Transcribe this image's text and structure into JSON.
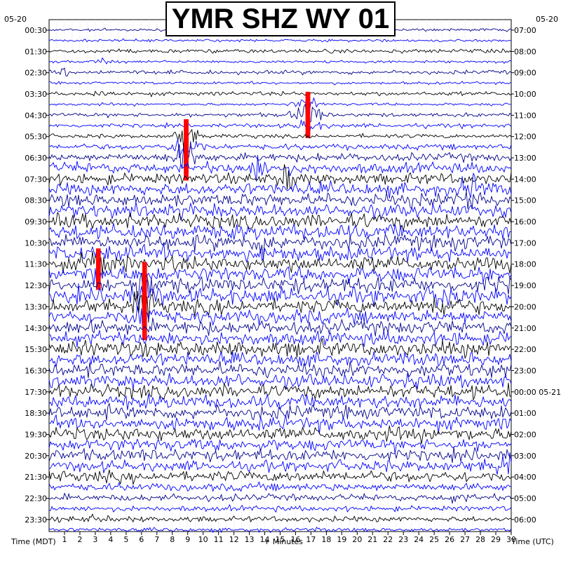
{
  "title": "YMR SHZ WY 01",
  "date_left": "05-20",
  "date_right": "05-20",
  "xlabel": "+ Minutes",
  "left_axis_label": "Time (MDT)",
  "right_axis_label": "Time (UTC)",
  "colors": {
    "trace_sequence": [
      "#00008b",
      "#0000ff",
      "#000000",
      "#0000ff"
    ],
    "clip": "#ff0000",
    "grid": "#c8c8c8"
  },
  "chart_data": {
    "type": "line",
    "description_of_series": "helicorder: 48 rows of 30-minute seismogram traces",
    "rows": 48,
    "minutes_per_row": 30,
    "xlim": [
      0,
      30
    ],
    "x_ticks": [
      1,
      2,
      3,
      4,
      5,
      6,
      7,
      8,
      9,
      10,
      11,
      12,
      13,
      14,
      15,
      16,
      17,
      18,
      19,
      20,
      21,
      22,
      23,
      24,
      25,
      26,
      27,
      28,
      29,
      30
    ],
    "left_tick_labels": [
      "00:30",
      "01:30",
      "02:30",
      "03:30",
      "04:30",
      "05:30",
      "06:30",
      "07:30",
      "08:30",
      "09:30",
      "10:30",
      "11:30",
      "12:30",
      "13:30",
      "14:30",
      "15:30",
      "16:30",
      "17:30",
      "18:30",
      "19:30",
      "20:30",
      "21:30",
      "22:30",
      "23:30"
    ],
    "right_tick_labels": [
      "07:00",
      "08:00",
      "09:00",
      "10:00",
      "11:00",
      "12:00",
      "13:00",
      "14:00",
      "15:00",
      "16:00",
      "17:00",
      "18:00",
      "19:00",
      "20:00",
      "21:00",
      "22:00",
      "23:00",
      "00:00 05-21",
      "01:00",
      "02:00",
      "03:00",
      "04:00",
      "05:00",
      "06:00"
    ],
    "noise_amplitude_by_row": [
      2,
      2,
      3,
      2,
      3,
      2,
      3,
      2,
      3,
      3,
      3,
      4,
      6,
      8,
      8,
      9,
      10,
      10,
      11,
      11,
      11,
      11,
      11,
      11,
      11,
      11,
      10,
      10,
      10,
      10,
      11,
      10,
      10,
      10,
      10,
      10,
      10,
      10,
      10,
      9,
      9,
      8,
      8,
      6,
      5,
      4,
      4,
      3
    ],
    "events": [
      {
        "row": 3,
        "minute": 3.5,
        "amp": 4
      },
      {
        "row": 4,
        "minute": 1.0,
        "amp": 5
      },
      {
        "row": 6,
        "minute": 3.3,
        "amp": 5
      },
      {
        "row": 7,
        "minute": 16.8,
        "amp": 14,
        "clipped": true
      },
      {
        "row": 8,
        "minute": 16.8,
        "amp": 30,
        "clipped": true
      },
      {
        "row": 9,
        "minute": 16.8,
        "amp": 14,
        "clipped": true
      },
      {
        "row": 10,
        "minute": 8.9,
        "amp": 22,
        "clipped": true
      },
      {
        "row": 11,
        "minute": 8.9,
        "amp": 35,
        "clipped": true
      },
      {
        "row": 12,
        "minute": 8.9,
        "amp": 30,
        "clipped": true
      },
      {
        "row": 13,
        "minute": 13.5,
        "amp": 16
      },
      {
        "row": 14,
        "minute": 15.5,
        "amp": 20
      },
      {
        "row": 15,
        "minute": 27.5,
        "amp": 18
      },
      {
        "row": 16,
        "minute": 27.5,
        "amp": 18
      },
      {
        "row": 20,
        "minute": 14.0,
        "amp": 16
      },
      {
        "row": 22,
        "minute": 3.2,
        "amp": 20,
        "clipped": true
      },
      {
        "row": 23,
        "minute": 3.2,
        "amp": 20,
        "clipped": true
      },
      {
        "row": 24,
        "minute": 6.2,
        "amp": 30,
        "clipped": true
      },
      {
        "row": 25,
        "minute": 6.2,
        "amp": 30,
        "clipped": true
      },
      {
        "row": 26,
        "minute": 6.2,
        "amp": 30,
        "clipped": true
      },
      {
        "row": 27,
        "minute": 6.2,
        "amp": 30,
        "clipped": true
      },
      {
        "row": 25,
        "minute": 25.5,
        "amp": 18
      },
      {
        "row": 26,
        "minute": 25.5,
        "amp": 18
      },
      {
        "row": 41,
        "minute": 29.6,
        "amp": 18
      },
      {
        "row": 44,
        "minute": 26.5,
        "amp": 6
      },
      {
        "row": 46,
        "minute": 3.0,
        "amp": 6
      }
    ]
  }
}
